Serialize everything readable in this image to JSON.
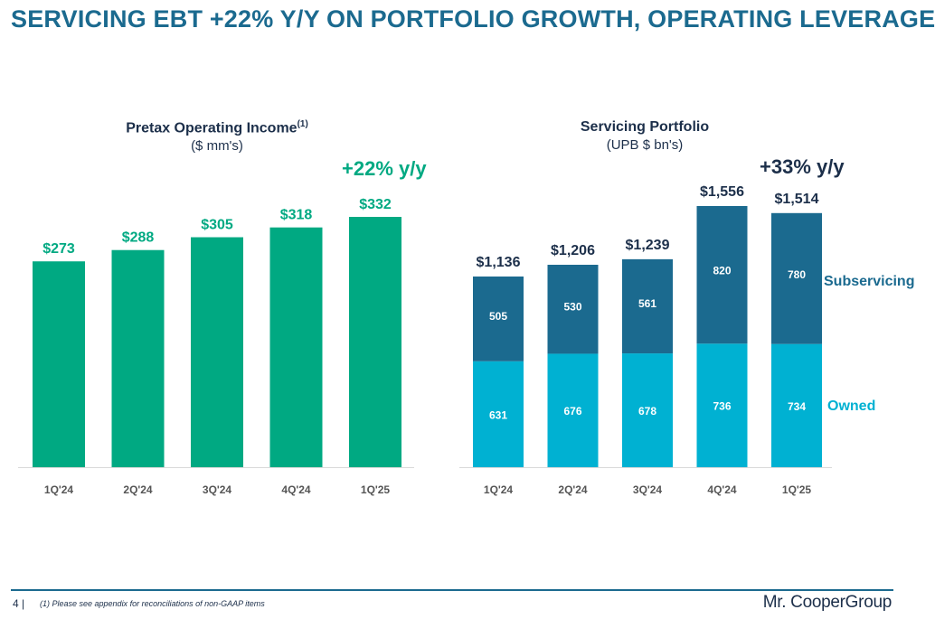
{
  "title": "SERVICING EBT +22% Y/Y ON PORTFOLIO GROWTH, OPERATING LEVERAGE",
  "colors": {
    "title": "#1b6a8f",
    "green": "#00a982",
    "owned": "#00b1d2",
    "subservicing": "#1b6a8f",
    "dark_text": "#1c2f4a"
  },
  "left_chart": {
    "title": "Pretax Operating Income",
    "title_superscript": "(1)",
    "subtitle": "($ mm's)",
    "growth": "+22% y/y"
  },
  "right_chart": {
    "title": "Servicing Portfolio",
    "subtitle": "(UPB $ bn's)",
    "growth": "+33% y/y"
  },
  "chart_data": [
    {
      "type": "bar",
      "title": "Pretax Operating Income",
      "categories": [
        "1Q'24",
        "2Q'24",
        "3Q'24",
        "4Q'24",
        "1Q'25"
      ],
      "values": [
        273,
        288,
        305,
        318,
        332
      ],
      "data_labels": [
        "$273",
        "$288",
        "$305",
        "$318",
        "$332"
      ],
      "ylim": [
        0,
        350
      ]
    },
    {
      "type": "bar",
      "stacked": true,
      "title": "Servicing Portfolio",
      "categories": [
        "1Q'24",
        "2Q'24",
        "3Q'24",
        "4Q'24",
        "1Q'25"
      ],
      "series": [
        {
          "name": "Owned",
          "values": [
            631,
            676,
            678,
            736,
            734
          ]
        },
        {
          "name": "Subservicing",
          "values": [
            505,
            530,
            561,
            820,
            780
          ]
        }
      ],
      "totals": [
        1136,
        1206,
        1239,
        1556,
        1514
      ],
      "total_labels": [
        "$1,136",
        "$1,206",
        "$1,239",
        "$1,556",
        "$1,514"
      ],
      "ylim": [
        0,
        1650
      ]
    }
  ],
  "footer": {
    "page": "4 |",
    "footnote": "(1) Please see appendix for reconciliations of non-GAAP items",
    "logo": "Mr. CooperGroup"
  }
}
